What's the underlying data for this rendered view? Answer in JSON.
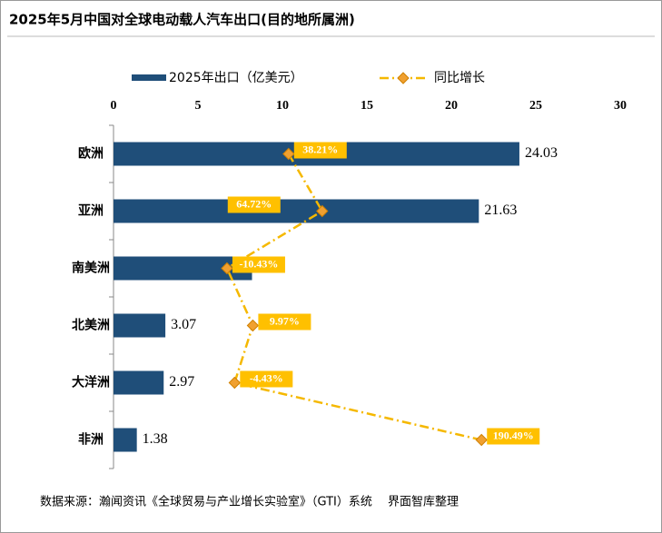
{
  "chart_data": {
    "type": "bar",
    "title": "2025年5月中国对全球电动载人汽车出口(目的地所属洲)",
    "categories": [
      "欧洲",
      "亚洲",
      "南美洲",
      "北美洲",
      "大洋洲",
      "非洲"
    ],
    "series": [
      {
        "name": "2025年出口（亿美元）",
        "color": "#1f4e79",
        "values": [
          24.03,
          21.63,
          8.2,
          3.07,
          2.97,
          1.38
        ]
      },
      {
        "name": "同比增长",
        "type": "line",
        "axis": "x2",
        "color": "#f5b800",
        "marker_color": "#f0a030",
        "values": [
          38.21,
          64.72,
          -10.43,
          9.97,
          -4.43,
          190.49
        ],
        "value_labels": [
          "38.21%",
          "64.72%",
          "-10.43%",
          "9.97%",
          "-4.43%",
          "190.49%"
        ]
      }
    ],
    "xlim": [
      0,
      30
    ],
    "xticks": [
      0,
      5,
      10,
      15,
      20,
      25,
      30
    ],
    "x2lim": [
      -100,
      300
    ],
    "source": "数据来源：瀚闻资讯《全球贸易与产业增长实验室》（GTI）系统　 界面智库整理"
  }
}
